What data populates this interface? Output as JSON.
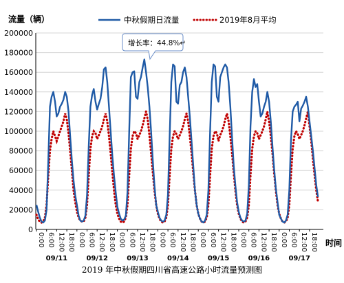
{
  "chart_data": {
    "type": "line",
    "title": "2019 年中秋假期四川省高速公路小时流量预测图",
    "ylabel": "流量（辆）",
    "xlabel": "时间",
    "ylim": [
      0,
      200000
    ],
    "yticks": [
      "0",
      "20000",
      "40000",
      "60000",
      "80000",
      "100000",
      "120000",
      "140000",
      "160000",
      "180000",
      "200000"
    ],
    "days": [
      "09/11",
      "09/12",
      "09/13",
      "09/14",
      "09/15",
      "09/16",
      "09/17"
    ],
    "x_tick_labels": [
      "0:00",
      "6:00",
      "12:00",
      "18:00"
    ],
    "legend_position": "top",
    "annotation": {
      "text": "增长率：44.8%↵",
      "day_index": 2,
      "hour": 18
    },
    "colors": {
      "holiday": "#1f5aa6",
      "average": "#c00000",
      "callout_border": "#6a8ec8"
    },
    "series": [
      {
        "name": "中秋假期日流量",
        "style": "solid",
        "days": [
          [
            25000,
            18000,
            12000,
            8000,
            7000,
            9000,
            20000,
            70000,
            125000,
            135000,
            140000,
            130000,
            115000,
            118000,
            125000,
            128000,
            132000,
            140000,
            135000,
            120000,
            95000,
            70000,
            50000,
            35000
          ],
          [
            25000,
            14000,
            9000,
            8000,
            9000,
            14000,
            35000,
            85000,
            125000,
            137000,
            143000,
            130000,
            122000,
            128000,
            133000,
            145000,
            163000,
            165000,
            150000,
            125000,
            100000,
            75000,
            55000,
            38000
          ],
          [
            23000,
            16000,
            11000,
            9000,
            10000,
            14000,
            38000,
            100000,
            155000,
            160000,
            161000,
            135000,
            133000,
            150000,
            155000,
            165000,
            173000,
            160000,
            145000,
            125000,
            100000,
            70000,
            45000,
            25000
          ],
          [
            18000,
            12000,
            9000,
            8000,
            9000,
            15000,
            35000,
            95000,
            150000,
            168000,
            166000,
            130000,
            128000,
            147000,
            150000,
            160000,
            165000,
            155000,
            135000,
            115000,
            90000,
            65000,
            40000,
            25000
          ],
          [
            16000,
            11000,
            8000,
            7000,
            9000,
            15000,
            40000,
            100000,
            150000,
            168000,
            166000,
            135000,
            130000,
            155000,
            160000,
            165000,
            168000,
            165000,
            150000,
            125000,
            95000,
            65000,
            45000,
            28000
          ],
          [
            18000,
            12000,
            9000,
            8000,
            9000,
            16000,
            45000,
            105000,
            140000,
            153000,
            145000,
            148000,
            130000,
            115000,
            118000,
            125000,
            130000,
            140000,
            130000,
            110000,
            85000,
            62000,
            42000,
            28000
          ],
          [
            15000,
            11000,
            8000,
            7000,
            9000,
            15000,
            40000,
            90000,
            120000,
            125000,
            127000,
            130000,
            110000,
            123000,
            126000,
            130000,
            135000,
            125000,
            110000,
            95000,
            80000,
            62000,
            45000,
            33000
          ]
        ]
      },
      {
        "name": "2019年8月平均",
        "style": "dotted",
        "days": [
          [
            15000,
            10000,
            8000,
            7000,
            8000,
            12000,
            25000,
            55000,
            80000,
            92000,
            100000,
            95000,
            90000,
            95000,
            100000,
            105000,
            110000,
            118000,
            112000,
            98000,
            80000,
            60000,
            40000,
            28000
          ],
          [
            18000,
            12000,
            9000,
            8000,
            8000,
            12000,
            25000,
            55000,
            82000,
            95000,
            100000,
            98000,
            92000,
            96000,
            100000,
            105000,
            112000,
            118000,
            110000,
            95000,
            78000,
            58000,
            40000,
            25000
          ],
          [
            16000,
            11000,
            8000,
            7000,
            8000,
            12000,
            25000,
            55000,
            82000,
            95000,
            100000,
            98000,
            92000,
            96000,
            100000,
            106000,
            113000,
            120000,
            112000,
            96000,
            78000,
            58000,
            40000,
            25000
          ],
          [
            16000,
            11000,
            8000,
            7000,
            8000,
            12000,
            25000,
            55000,
            82000,
            95000,
            100000,
            97000,
            92000,
            96000,
            100000,
            105000,
            112000,
            118000,
            110000,
            95000,
            78000,
            58000,
            40000,
            25000
          ],
          [
            16000,
            11000,
            8000,
            7000,
            8000,
            12000,
            25000,
            55000,
            82000,
            95000,
            100000,
            98000,
            90000,
            96000,
            100000,
            105000,
            112000,
            118000,
            110000,
            95000,
            78000,
            58000,
            40000,
            25000
          ],
          [
            16000,
            11000,
            8000,
            7000,
            8000,
            12000,
            25000,
            55000,
            82000,
            95000,
            100000,
            98000,
            92000,
            96000,
            100000,
            105000,
            112000,
            120000,
            110000,
            95000,
            78000,
            58000,
            40000,
            25000
          ],
          [
            16000,
            11000,
            8000,
            7000,
            8000,
            12000,
            25000,
            55000,
            82000,
            95000,
            100000,
            97000,
            92000,
            96000,
            100000,
            106000,
            113000,
            120000,
            105000,
            90000,
            72000,
            55000,
            40000,
            28000
          ]
        ]
      }
    ]
  }
}
